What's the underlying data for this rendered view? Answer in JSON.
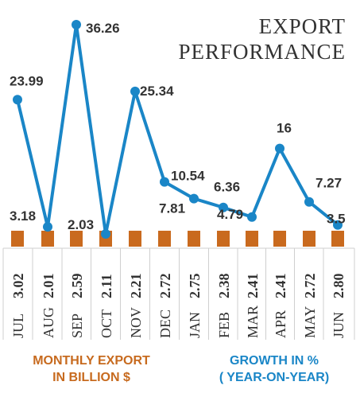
{
  "title": {
    "line1": "EXPORT",
    "line2": "PERFORMANCE"
  },
  "legend": {
    "export_line1": "MONTHLY EXPORT",
    "export_line2": "IN BILLION $",
    "growth_line1": "GROWTH IN %",
    "growth_line2": "( YEAR-ON-YEAR)"
  },
  "colors": {
    "line": "#1a86c7",
    "bar": "#c96a1e",
    "grid": "#cfcfcf",
    "text": "#333333"
  },
  "chart_data": {
    "type": "bar+line",
    "categories": [
      "JUL",
      "AUG",
      "SEP",
      "OCT",
      "NOV",
      "DEC",
      "JAN",
      "FEB",
      "MAR",
      "APR",
      "MAY",
      "JUN"
    ],
    "export_values": [
      "3.02",
      "2.01",
      "2.59",
      "2.11",
      "2.21",
      "2.72",
      "2.75",
      "2.38",
      "2.41",
      "2.41",
      "2.72",
      "2.80"
    ],
    "growth_values": [
      23.99,
      3.18,
      36.26,
      2.03,
      25.34,
      10.54,
      7.81,
      6.36,
      4.79,
      16,
      7.27,
      3.5
    ],
    "growth_labels": [
      "23.99",
      "3.18",
      "36.26",
      "2.03",
      "25.34",
      "10.54",
      "7.81",
      "6.36",
      "4.79",
      "16",
      "7.27",
      "3.5"
    ],
    "grid": true
  }
}
